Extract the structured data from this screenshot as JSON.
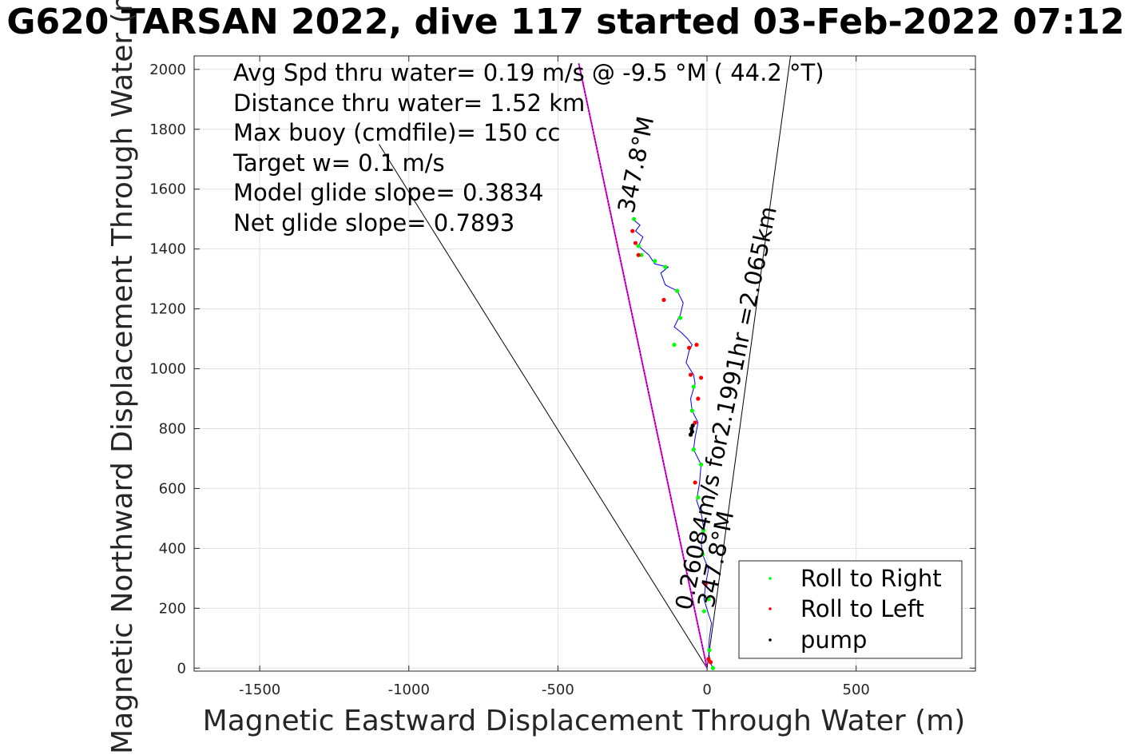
{
  "chart_data": {
    "type": "line",
    "title": "G620 TARSAN 2022, dive 117 started 03-Feb-2022 07:12",
    "xlabel": "Magnetic Eastward Displacement Through Water (m)",
    "ylabel": "Magnetic Northward Displacement Through Water (m)",
    "xlim": [
      -1720,
      900
    ],
    "ylim": [
      -10,
      2045
    ],
    "xticks": [
      -1500,
      -1000,
      -500,
      0,
      500
    ],
    "yticks": [
      0,
      200,
      400,
      600,
      800,
      1000,
      1200,
      1400,
      1600,
      1800,
      2000
    ],
    "xtick_labels": [
      "-1500",
      "-1000",
      "-500",
      "0",
      "500"
    ],
    "ytick_labels": [
      "0",
      "200",
      "400",
      "600",
      "800",
      "1000",
      "1200",
      "1400",
      "1600",
      "1800",
      "2000"
    ],
    "grid": true,
    "annotations": [
      "Avg Spd thru water=  0.19 m/s @  -9.5 °M ( 44.2 °T)",
      "Distance thru water=  1.52 km",
      "Max buoy (cmdfile)= 150 cc",
      "Target w= 0.1 m/s",
      "Model glide slope= 0.3834",
      "Net glide slope= 0.7893"
    ],
    "line_labels": {
      "upper": "0.26084m/s for2.1991hr =2.065km",
      "upper_heading": "347.8°M",
      "lower_heading": "347.8°M"
    },
    "cone_lines": [
      {
        "x": [
          0,
          -1100
        ],
        "y": [
          0,
          1750
        ]
      },
      {
        "x": [
          0,
          280
        ],
        "y": [
          0,
          2045
        ]
      }
    ],
    "heading_line": {
      "x": [
        0,
        -430
      ],
      "y": [
        0,
        2020
      ]
    },
    "track": {
      "x": [
        20,
        10,
        5,
        8,
        15,
        2,
        -10,
        -5,
        5,
        -15,
        -20,
        -10,
        -18,
        -35,
        -25,
        -20,
        -45,
        -40,
        -30,
        -50,
        -55,
        -40,
        -45,
        -70,
        -60,
        -50,
        -65,
        -85,
        -110,
        -90,
        -80,
        -100,
        -140,
        -155,
        -130,
        -175,
        -195,
        -230,
        -215,
        -240,
        -225,
        -250
      ],
      "y": [
        0,
        20,
        60,
        100,
        150,
        190,
        230,
        280,
        330,
        380,
        420,
        460,
        510,
        560,
        620,
        680,
        730,
        770,
        820,
        860,
        900,
        950,
        980,
        1020,
        1060,
        1080,
        1100,
        1120,
        1140,
        1180,
        1220,
        1260,
        1280,
        1320,
        1340,
        1350,
        1380,
        1410,
        1440,
        1460,
        1480,
        1500
      ]
    },
    "series": [
      {
        "name": "Roll to Right",
        "color": "#00ff00",
        "x": [
          20,
          8,
          -10,
          5,
          -15,
          -12,
          -30,
          -20,
          -45,
          -50,
          -45,
          -110,
          -90,
          -100,
          -140,
          -175,
          -220,
          -230,
          -245
        ],
        "y": [
          0,
          60,
          190,
          230,
          380,
          460,
          570,
          680,
          730,
          860,
          940,
          1080,
          1170,
          1260,
          1340,
          1360,
          1380,
          1410,
          1500
        ]
      },
      {
        "name": "Roll to Left",
        "color": "#ff0000",
        "x": [
          12,
          5,
          -5,
          -40,
          -55,
          -40,
          -30,
          -55,
          -20,
          -35,
          -60,
          -145,
          -230,
          -240,
          -250
        ],
        "y": [
          20,
          30,
          280,
          620,
          780,
          820,
          900,
          980,
          970,
          1080,
          1070,
          1230,
          1380,
          1420,
          1460
        ]
      },
      {
        "name": "pump",
        "color": "#000000",
        "x": [
          -55,
          -50,
          -52,
          -48
        ],
        "y": [
          780,
          790,
          800,
          810
        ]
      }
    ],
    "legend_placement": "bottom-right"
  }
}
